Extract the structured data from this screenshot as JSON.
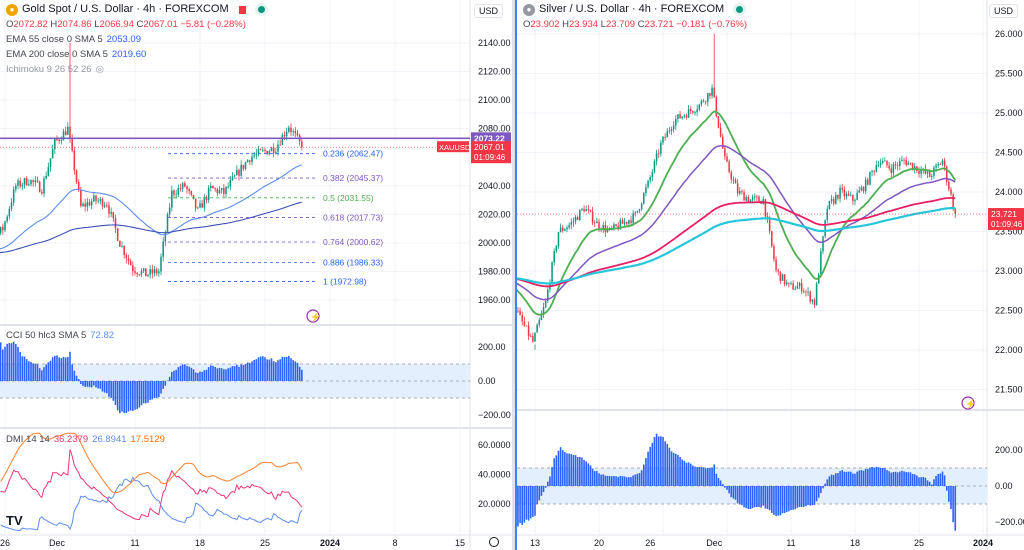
{
  "gold": {
    "symbol_icon": "gold-coin-icon",
    "title": "Gold Spot / U.S. Dollar · 4h · FOREXCOM",
    "ohlc": {
      "o_label": "O",
      "o": "2072.82",
      "h_label": "H",
      "h": "2074.86",
      "l_label": "L",
      "l": "2066.94",
      "c_label": "C",
      "c": "2067.01",
      "change": "−5.81 (−0.28%)"
    },
    "indicators": [
      {
        "label": "EMA 55 close 0 SMA 5",
        "value": "2053.09"
      },
      {
        "label": "EMA 200 close 0 SMA 5",
        "value": "2019.60"
      },
      {
        "label": "Ichimoku 9 26 52 26",
        "value": ""
      }
    ],
    "currency": "USD",
    "price_axis": [
      "2140.00",
      "2120.00",
      "2100.00",
      "2080.00",
      "2040.00",
      "2020.00",
      "2000.00",
      "1980.00",
      "1960.00"
    ],
    "horizontal_line": {
      "value": "2073.22",
      "color": "#7e57c2"
    },
    "symbol_tag": "XAUUSD",
    "last_price": "2067.01",
    "countdown": "01:09:46",
    "fib_levels": [
      {
        "label": "0.236 (2062.47)",
        "value": 2062.47,
        "color": "#2962ff"
      },
      {
        "label": "0.382 (2045.37)",
        "value": 2045.37,
        "color": "#7e57c2"
      },
      {
        "label": "0.5 (2031.55)",
        "value": 2031.55,
        "color": "#4caf50"
      },
      {
        "label": "0.618 (2017.73)",
        "value": 2017.73,
        "color": "#7e57c2"
      },
      {
        "label": "0.764 (2000.62)",
        "value": 2000.62,
        "color": "#7e57c2"
      },
      {
        "label": "0.886 (1986.33)",
        "value": 1986.33,
        "color": "#2962ff"
      },
      {
        "label": "1 (1972.98)",
        "value": 1972.98,
        "color": "#2962ff"
      }
    ],
    "cci": {
      "label": "CCI 50 hlc3 SMA 5",
      "value": "72.82",
      "axis": [
        "200.00",
        "0.00",
        "−200.00"
      ]
    },
    "dmi": {
      "label": "DMI 14 14",
      "plus": "36.2379",
      "minus": "26.8941",
      "adx": "17.5129",
      "axis": [
        "60.0000",
        "40.0000",
        "20.0000"
      ]
    },
    "date_axis": [
      {
        "label": "26",
        "date": "2023-11-27"
      },
      {
        "label": "Dec",
        "date": "2023-12-01"
      },
      {
        "label": "11",
        "date": "2023-12-11"
      },
      {
        "label": "18",
        "date": "2023-12-18"
      },
      {
        "label": "25",
        "date": "2023-12-25"
      },
      {
        "label": "2024",
        "date": "2024-01-01"
      },
      {
        "label": "8",
        "date": "2024-01-08"
      },
      {
        "label": "15",
        "date": "2024-01-15"
      }
    ],
    "path": [
      [
        "2023-11-22",
        1995
      ],
      [
        "2023-11-24",
        2000
      ],
      [
        "2023-11-27",
        2010
      ],
      [
        "2023-11-28",
        2040
      ],
      [
        "2023-11-29",
        2044
      ],
      [
        "2023-11-30",
        2038
      ],
      [
        "2023-12-01",
        2070
      ],
      [
        "2023-12-04",
        2080,
        2140
      ],
      [
        "2023-12-05",
        2025
      ],
      [
        "2023-12-06",
        2030
      ],
      [
        "2023-12-07",
        2028
      ],
      [
        "2023-12-08",
        2000
      ],
      [
        "2023-12-11",
        1982
      ],
      [
        "2023-12-12",
        1978
      ],
      [
        "2023-12-13",
        1980
      ],
      [
        "2023-12-14",
        2035
      ],
      [
        "2023-12-15",
        2040
      ],
      [
        "2023-12-18",
        2022
      ],
      [
        "2023-12-19",
        2038
      ],
      [
        "2023-12-20",
        2035
      ],
      [
        "2023-12-21",
        2048
      ],
      [
        "2023-12-22",
        2060
      ],
      [
        "2023-12-26",
        2067
      ],
      [
        "2023-12-27",
        2082
      ],
      [
        "2023-12-28",
        2067.01
      ]
    ]
  },
  "silver": {
    "symbol_icon": "silver-coin-icon",
    "title": "Silver / U.S. Dollar · 4h · FOREXCOM",
    "ohlc": {
      "o_label": "O",
      "o": "23.902",
      "h_label": "H",
      "h": "23.934",
      "l_label": "L",
      "l": "23.709",
      "c_label": "C",
      "c": "23.721",
      "change": "−0.181 (−0.76%)"
    },
    "currency": "USD",
    "price_axis": [
      "26.000",
      "25.500",
      "25.000",
      "24.500",
      "24.000",
      "23.500",
      "23.000",
      "22.500",
      "22.000",
      "21.500"
    ],
    "last_price": "23.721",
    "countdown": "01:09:46",
    "cci_axis": [
      "200.00",
      "0.00",
      "−200.00"
    ],
    "date_axis": [
      {
        "label": "13",
        "date": "2023-11-13"
      },
      {
        "label": "20",
        "date": "2023-11-20"
      },
      {
        "label": "26",
        "date": "2023-11-26"
      },
      {
        "label": "Dec",
        "date": "2023-12-01"
      },
      {
        "label": "11",
        "date": "2023-12-11"
      },
      {
        "label": "18",
        "date": "2023-12-18"
      },
      {
        "label": "25",
        "date": "2023-12-25"
      },
      {
        "label": "2024",
        "date": "2024-01-01"
      }
    ],
    "path": [
      [
        "2023-11-06",
        22.9
      ],
      [
        "2023-11-09",
        22.8
      ],
      [
        "2023-11-10",
        22.4
      ],
      [
        "2023-11-13",
        22.1,
        22.0
      ],
      [
        "2023-11-14",
        22.6
      ],
      [
        "2023-11-15",
        23.5
      ],
      [
        "2023-11-16",
        23.6
      ],
      [
        "2023-11-17",
        23.8
      ],
      [
        "2023-11-20",
        23.6
      ],
      [
        "2023-11-21",
        23.5
      ],
      [
        "2023-11-22",
        23.6
      ],
      [
        "2023-11-23",
        23.7
      ],
      [
        "2023-11-24",
        24.1
      ],
      [
        "2023-11-27",
        24.6
      ],
      [
        "2023-11-28",
        24.9
      ],
      [
        "2023-11-29",
        25.0
      ],
      [
        "2023-11-30",
        25.1
      ],
      [
        "2023-12-01",
        25.3,
        26.0
      ],
      [
        "2023-12-04",
        24.4
      ],
      [
        "2023-12-05",
        24.0
      ],
      [
        "2023-12-06",
        23.9
      ],
      [
        "2023-12-07",
        23.9
      ],
      [
        "2023-12-08",
        23.0
      ],
      [
        "2023-12-11",
        22.8
      ],
      [
        "2023-12-12",
        22.8
      ],
      [
        "2023-12-13",
        22.6
      ],
      [
        "2023-12-14",
        23.8
      ],
      [
        "2023-12-15",
        24.0
      ],
      [
        "2023-12-18",
        23.9
      ],
      [
        "2023-12-19",
        24.1
      ],
      [
        "2023-12-20",
        24.4
      ],
      [
        "2023-12-21",
        24.3
      ],
      [
        "2023-12-22",
        24.4
      ],
      [
        "2023-12-26",
        24.2
      ],
      [
        "2023-12-27",
        24.4
      ],
      [
        "2023-12-28",
        23.721
      ]
    ]
  },
  "colors": {
    "up": "#089981",
    "down": "#f23645",
    "ema_fast": "#5b8def",
    "ema_slow": "#3f51b5",
    "cci": "#2962ff",
    "cci_band": "#e3effd",
    "dmi_plus": "#f23670",
    "dmi_minus": "#5b8def",
    "adx": "#ff7f2a",
    "s_green": "#4caf50",
    "s_purple": "#7e57c2",
    "s_red": "#e91e63",
    "s_cyan": "#26c6da"
  },
  "branding": "TV",
  "settings_icon": "gear-icon",
  "alert_icon": "lightning-icon"
}
